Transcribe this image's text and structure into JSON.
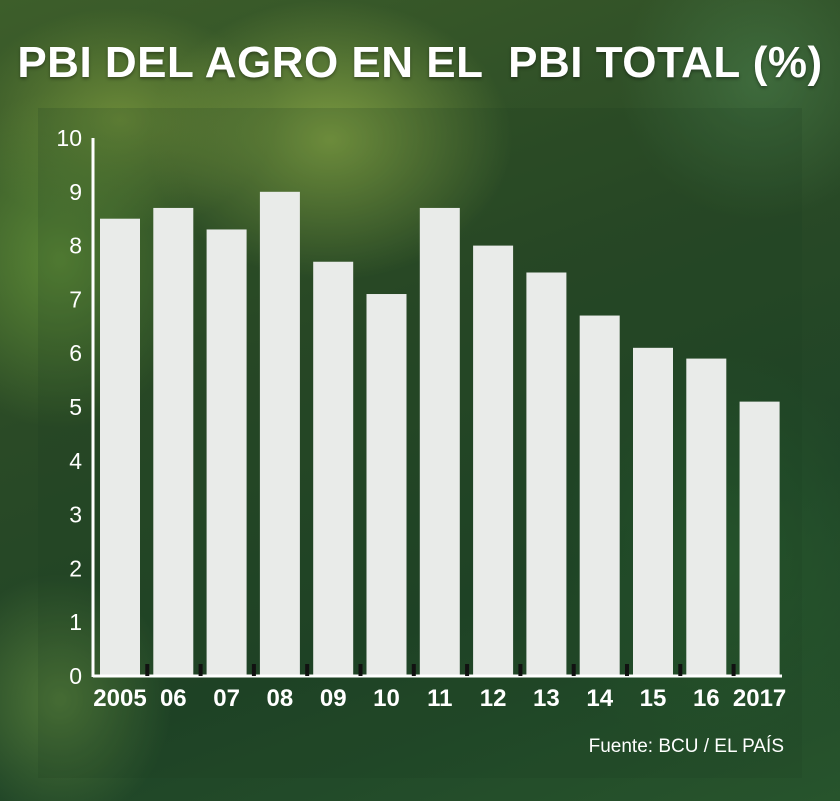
{
  "title": "PBI DEL AGRO EN EL  PBI TOTAL (%)",
  "source": "Fuente: BCU / EL PAÍS",
  "colors": {
    "bar": "#e9ebe9",
    "text": "#ffffff",
    "axis": "#ffffff"
  },
  "chart_data": {
    "type": "bar",
    "categories": [
      "2005",
      "06",
      "07",
      "08",
      "09",
      "10",
      "11",
      "12",
      "13",
      "14",
      "15",
      "16",
      "2017"
    ],
    "values": [
      8.5,
      8.7,
      8.3,
      9.0,
      7.7,
      7.1,
      8.7,
      8.0,
      7.5,
      6.7,
      6.1,
      5.9,
      5.1
    ],
    "title": "PBI DEL AGRO EN EL  PBI TOTAL (%)",
    "yticks": [
      "0",
      "1",
      "2",
      "3",
      "4",
      "5",
      "6",
      "7",
      "8",
      "9",
      "10"
    ],
    "ylim": [
      0,
      10
    ],
    "grid": false
  }
}
